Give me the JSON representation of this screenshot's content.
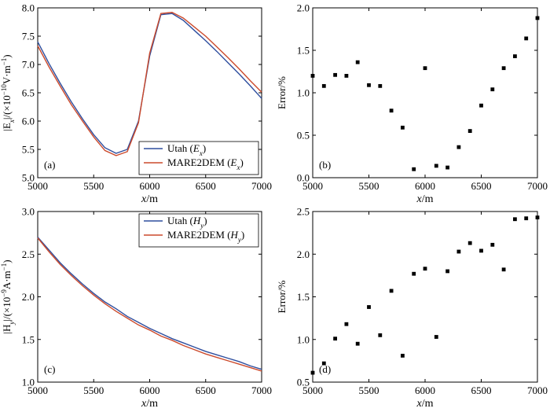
{
  "colors": {
    "utah": "#2e4e9e",
    "mare2dem": "#cc4a2c",
    "points": "#000000"
  },
  "chart_data": [
    {
      "type": "line",
      "panel_label": "(a)",
      "xlabel": "x/m",
      "ylabel": "|Ex|/(×10⁻¹⁰V·m⁻¹)",
      "xlim": [
        5000,
        7000
      ],
      "ylim": [
        5.0,
        8.0
      ],
      "xticks": [
        "5000",
        "5500",
        "6000",
        "6500",
        "7000"
      ],
      "yticks": [
        "5.0",
        "5.5",
        "6.0",
        "6.5",
        "7.0",
        "7.5",
        "8.0"
      ],
      "legend": [
        "Utah (Ex)",
        "MARE2DEM (Ex)"
      ],
      "legend_loc": "bottom-right",
      "x": [
        5000,
        5100,
        5200,
        5300,
        5400,
        5500,
        5600,
        5700,
        5800,
        5900,
        6000,
        6100,
        6200,
        6300,
        6400,
        6500,
        6600,
        6700,
        6800,
        6900,
        7000
      ],
      "series": [
        {
          "name": "Utah (Ex)",
          "values": [
            7.4,
            7.02,
            6.67,
            6.34,
            6.04,
            5.76,
            5.53,
            5.43,
            5.5,
            6.0,
            7.15,
            7.88,
            7.9,
            7.78,
            7.6,
            7.42,
            7.23,
            7.03,
            6.83,
            6.62,
            6.4
          ]
        },
        {
          "name": "MARE2DEM (Ex)",
          "values": [
            7.33,
            6.96,
            6.62,
            6.29,
            6.0,
            5.72,
            5.48,
            5.39,
            5.46,
            5.97,
            7.2,
            7.9,
            7.92,
            7.82,
            7.66,
            7.5,
            7.31,
            7.12,
            6.92,
            6.71,
            6.51
          ]
        }
      ]
    },
    {
      "type": "scatter",
      "panel_label": "(b)",
      "xlabel": "x/m",
      "ylabel": "Error/%",
      "xlim": [
        5000,
        7000
      ],
      "ylim": [
        0.0,
        2.0
      ],
      "xticks": [
        "5000",
        "5500",
        "6000",
        "6500",
        "7000"
      ],
      "yticks": [
        "0.0",
        "0.5",
        "1.0",
        "1.5",
        "2.0"
      ],
      "x": [
        5000,
        5100,
        5200,
        5300,
        5400,
        5500,
        5600,
        5700,
        5800,
        5900,
        6000,
        6100,
        6200,
        6300,
        6400,
        6500,
        6600,
        6700,
        6800,
        6900,
        7000
      ],
      "values": [
        1.2,
        1.08,
        1.21,
        1.2,
        1.36,
        1.09,
        1.08,
        0.79,
        0.59,
        0.1,
        1.29,
        0.14,
        0.12,
        0.36,
        0.55,
        0.85,
        1.04,
        1.29,
        1.43,
        1.64,
        1.88
      ]
    },
    {
      "type": "line",
      "panel_label": "(c)",
      "xlabel": "x/m",
      "ylabel": "|Hy|/(×10⁻⁹A·m⁻¹)",
      "xlim": [
        5000,
        7000
      ],
      "ylim": [
        1.0,
        3.0
      ],
      "xticks": [
        "5000",
        "5500",
        "6000",
        "6500",
        "7000"
      ],
      "yticks": [
        "1.0",
        "1.5",
        "2.0",
        "2.5",
        "3.0"
      ],
      "legend": [
        "Utah (Hy)",
        "MARE2DEM (Hy)"
      ],
      "legend_loc": "top-right",
      "x": [
        5000,
        5100,
        5200,
        5300,
        5400,
        5500,
        5600,
        5700,
        5800,
        5900,
        6000,
        6100,
        6200,
        6300,
        6400,
        6500,
        6600,
        6700,
        6800,
        6900,
        7000
      ],
      "series": [
        {
          "name": "Utah (Hy)",
          "values": [
            2.7,
            2.55,
            2.4,
            2.27,
            2.15,
            2.04,
            1.94,
            1.86,
            1.77,
            1.7,
            1.63,
            1.57,
            1.51,
            1.46,
            1.41,
            1.36,
            1.32,
            1.28,
            1.24,
            1.19,
            1.15
          ]
        },
        {
          "name": "MARE2DEM (Hy)",
          "values": [
            2.69,
            2.53,
            2.38,
            2.25,
            2.13,
            2.02,
            1.92,
            1.83,
            1.75,
            1.67,
            1.61,
            1.54,
            1.49,
            1.43,
            1.38,
            1.33,
            1.29,
            1.25,
            1.21,
            1.17,
            1.13
          ]
        }
      ]
    },
    {
      "type": "scatter",
      "panel_label": "(d)",
      "xlabel": "x/m",
      "ylabel": "Error/%",
      "xlim": [
        5000,
        7000
      ],
      "ylim": [
        0.5,
        2.5
      ],
      "xticks": [
        "5000",
        "5500",
        "6000",
        "6500",
        "7000"
      ],
      "yticks": [
        "0.5",
        "1.0",
        "1.5",
        "2.0",
        "2.5"
      ],
      "x": [
        5000,
        5100,
        5200,
        5300,
        5400,
        5500,
        5600,
        5700,
        5800,
        5900,
        6000,
        6100,
        6200,
        6300,
        6400,
        6500,
        6600,
        6700,
        6800,
        6900,
        7000
      ],
      "values": [
        0.61,
        0.72,
        1.01,
        1.18,
        0.95,
        1.38,
        1.05,
        1.57,
        0.81,
        1.77,
        1.83,
        1.03,
        1.8,
        2.03,
        2.13,
        2.04,
        2.11,
        1.82,
        2.41,
        2.42,
        2.43
      ]
    }
  ]
}
